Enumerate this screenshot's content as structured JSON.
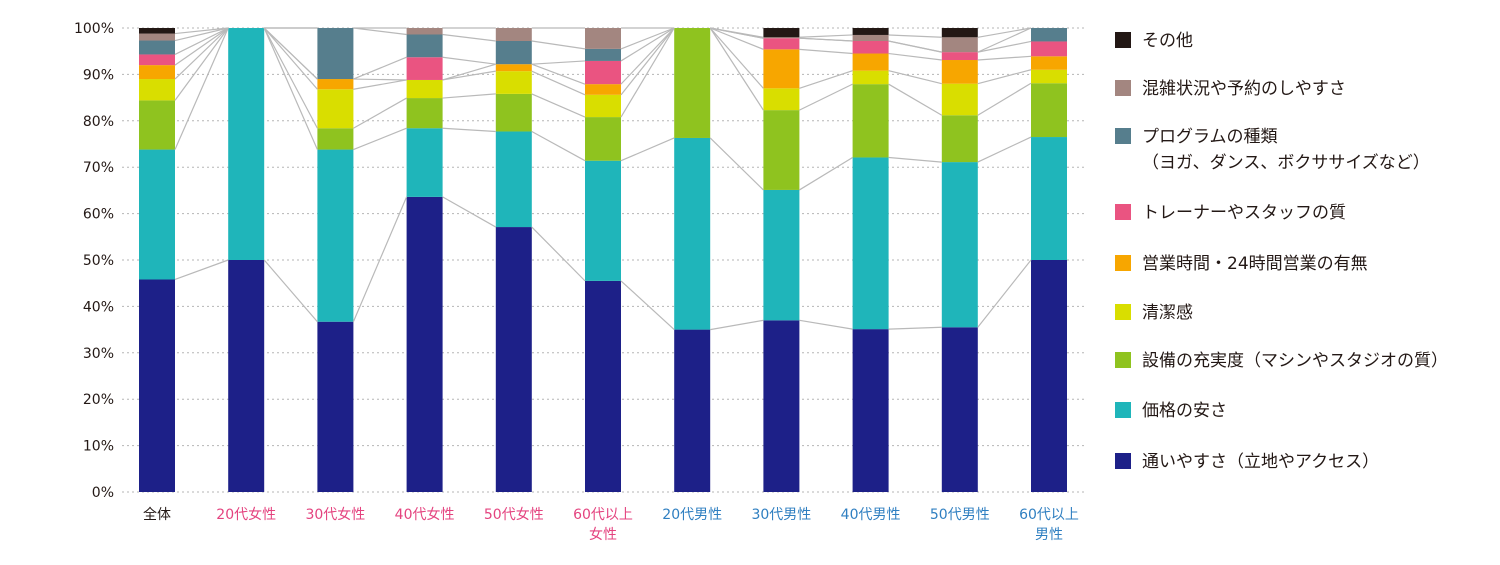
{
  "chart_data": {
    "type": "bar",
    "stacked": true,
    "normalized": true,
    "title": "",
    "xlabel": "",
    "ylabel": "",
    "ylim": [
      0,
      100
    ],
    "yticks": [
      "0%",
      "10%",
      "20%",
      "30%",
      "40%",
      "50%",
      "60%",
      "70%",
      "80%",
      "90%",
      "100%"
    ],
    "grid": "horizontal-dotted",
    "categories": [
      {
        "lines": [
          "全体"
        ],
        "color": "#231815"
      },
      {
        "lines": [
          "20代女性"
        ],
        "color": "#e4437f"
      },
      {
        "lines": [
          "30代女性"
        ],
        "color": "#e4437f"
      },
      {
        "lines": [
          "40代女性"
        ],
        "color": "#e4437f"
      },
      {
        "lines": [
          "50代女性"
        ],
        "color": "#e4437f"
      },
      {
        "lines": [
          "60代以上",
          "女性"
        ],
        "color": "#e4437f"
      },
      {
        "lines": [
          "20代男性"
        ],
        "color": "#2f7fc1"
      },
      {
        "lines": [
          "30代男性"
        ],
        "color": "#2f7fc1"
      },
      {
        "lines": [
          "40代男性"
        ],
        "color": "#2f7fc1"
      },
      {
        "lines": [
          "50代男性"
        ],
        "color": "#2f7fc1"
      },
      {
        "lines": [
          "60代以上",
          "男性"
        ],
        "color": "#2f7fc1"
      }
    ],
    "series": [
      {
        "name": "通いやすさ（立地やアクセス）",
        "color": "#1d2088",
        "values": [
          45.8,
          50.0,
          36.7,
          63.6,
          57.1,
          45.5,
          35.0,
          37.0,
          35.1,
          35.5,
          50.0
        ]
      },
      {
        "name": "価格の安さ",
        "color": "#1fb5ba",
        "values": [
          28.0,
          50.0,
          37.1,
          14.8,
          20.6,
          25.9,
          41.3,
          28.1,
          37.0,
          35.6,
          26.5
        ]
      },
      {
        "name": "設備の充実度（マシンやスタジオの質）",
        "color": "#8fc31f",
        "values": [
          10.6,
          0,
          4.6,
          6.5,
          8.1,
          9.4,
          23.7,
          17.2,
          15.8,
          10.1,
          11.6
        ]
      },
      {
        "name": "清潔感",
        "color": "#d9de00",
        "values": [
          4.6,
          0,
          8.4,
          3.9,
          4.9,
          4.8,
          0,
          4.7,
          2.9,
          6.8,
          2.9
        ]
      },
      {
        "name": "営業時間・24時間営業の有無",
        "color": "#f7a600",
        "values": [
          3.0,
          0,
          2.2,
          0,
          1.5,
          2.3,
          0,
          8.4,
          3.7,
          5.1,
          2.9
        ]
      },
      {
        "name": "トレーナーやスタッフの質",
        "color": "#ea5481",
        "values": [
          2.3,
          0,
          0,
          4.9,
          0,
          5.0,
          0,
          2.4,
          2.7,
          1.7,
          3.2
        ]
      },
      {
        "name": "プログラムの種類\n（ヨガ、ダンス、ボクササイズなど）",
        "color": "#567e8d",
        "values": [
          3.0,
          0,
          11.0,
          4.9,
          5.0,
          2.6,
          0,
          0,
          0,
          0,
          2.9
        ]
      },
      {
        "name": "混雑状況や予約のしやすさ",
        "color": "#a38680",
        "values": [
          1.5,
          0,
          0,
          1.4,
          2.8,
          4.5,
          0,
          0.2,
          1.3,
          3.2,
          0
        ]
      },
      {
        "name": "その他",
        "color": "#231815",
        "values": [
          1.2,
          0,
          0,
          0,
          0,
          0,
          0,
          2.0,
          1.5,
          2.0,
          0
        ]
      }
    ]
  }
}
